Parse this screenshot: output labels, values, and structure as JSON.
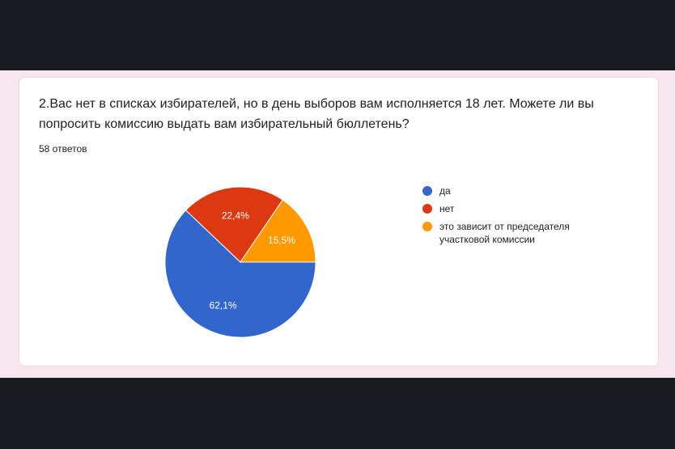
{
  "question": "2.Вас нет в списках избирателей, но в день выборов вам исполняется 18 лет. Можете ли вы попросить комиссию выдать вам избирательный бюллетень?",
  "answers_count": "58 ответов",
  "chart_data": {
    "type": "pie",
    "categories": [
      "да",
      "нет",
      "это зависит от председателя участковой комиссии"
    ],
    "values": [
      62.1,
      22.4,
      15.5
    ],
    "labels": [
      "62,1%",
      "22,4%",
      "15,5%"
    ],
    "colors": [
      "#3366cc",
      "#dc3912",
      "#ff9900"
    ],
    "legend_position": "right"
  }
}
